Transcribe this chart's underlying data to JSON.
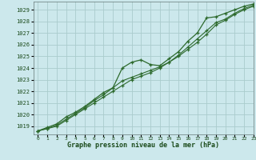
{
  "title": "Graphe pression niveau de la mer (hPa)",
  "bg_color": "#cce8ec",
  "grid_color": "#aacccc",
  "line_color": "#2d6a2d",
  "xlim": [
    -0.5,
    23
  ],
  "ylim": [
    1018.3,
    1029.7
  ],
  "yticks": [
    1019,
    1020,
    1021,
    1022,
    1023,
    1024,
    1025,
    1026,
    1027,
    1028,
    1029
  ],
  "xticks": [
    0,
    1,
    2,
    3,
    4,
    5,
    6,
    7,
    8,
    9,
    10,
    11,
    12,
    13,
    14,
    15,
    16,
    17,
    18,
    19,
    20,
    21,
    22,
    23
  ],
  "series": [
    [
      1018.6,
      1018.9,
      1019.2,
      1019.8,
      1020.2,
      1020.7,
      1021.3,
      1021.9,
      1022.3,
      1024.0,
      1024.5,
      1024.7,
      1024.3,
      1024.2,
      1024.8,
      1025.4,
      1026.3,
      1027.0,
      1028.3,
      1028.4,
      1028.7,
      1029.0,
      1029.3,
      1029.5
    ],
    [
      1018.6,
      1018.8,
      1019.1,
      1019.6,
      1020.1,
      1020.6,
      1021.2,
      1021.7,
      1022.3,
      1022.9,
      1023.2,
      1023.5,
      1023.8,
      1024.1,
      1024.5,
      1025.1,
      1025.8,
      1026.5,
      1027.2,
      1027.9,
      1028.2,
      1028.7,
      1029.1,
      1029.4
    ],
    [
      1018.6,
      1018.8,
      1019.0,
      1019.5,
      1020.0,
      1020.5,
      1021.0,
      1021.5,
      1022.0,
      1022.5,
      1023.0,
      1023.3,
      1023.6,
      1024.0,
      1024.5,
      1025.0,
      1025.6,
      1026.2,
      1026.9,
      1027.7,
      1028.1,
      1028.6,
      1029.0,
      1029.3
    ]
  ]
}
